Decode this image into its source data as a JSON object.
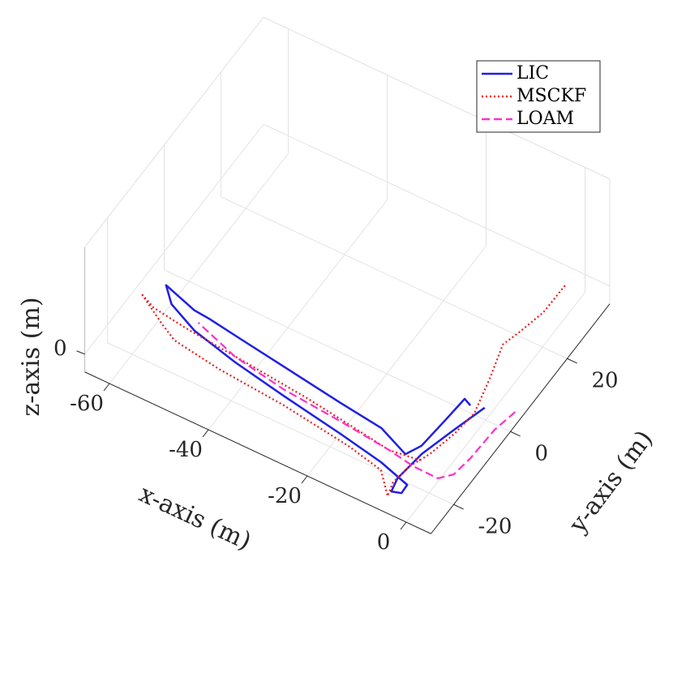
{
  "chart_data": {
    "type": "line3d",
    "xlabel": "x-axis (m)",
    "ylabel": "y-axis (m)",
    "zlabel": "z-axis (m)",
    "xlim": [
      -65,
      5
    ],
    "ylim": [
      -28,
      35
    ],
    "zlim": [
      -10,
      60
    ],
    "xticks": [
      -60,
      -40,
      -20,
      0
    ],
    "yticks": [
      -20,
      0,
      20
    ],
    "zticks": [
      0
    ],
    "grid": true,
    "legend": "upper right",
    "series": [
      {
        "name": "LIC",
        "color": "#1f1fe6",
        "style": "solid",
        "x": [
          0.5,
          -1.5,
          -3.5,
          -4.3,
          -3.7,
          -2.0,
          -2.1,
          -8.6,
          -17.9,
          -30.7,
          -41.8,
          -51.4,
          -57.9,
          -60.9,
          -53.8,
          -50.6,
          -43.1,
          -34.1,
          -21.4,
          -12.5,
          -5.9,
          -4.5,
          -3.9,
          -3.5,
          -1.9
        ],
        "y": [
          -1.2,
          -8.5,
          -16.4,
          -23.6,
          -26.8,
          -26.2,
          -24.0,
          -21.9,
          -20.0,
          -17.7,
          -15.5,
          -13.0,
          -9.8,
          -6.5,
          -8.9,
          -9.2,
          -10.4,
          -11.8,
          -13.8,
          -15.0,
          -18.0,
          -14.8,
          -7.2,
          -1.3,
          -2.1
        ],
        "z": [
          0,
          0,
          0,
          0,
          0,
          0,
          0,
          0,
          0,
          0,
          0,
          0,
          0,
          0,
          0,
          0,
          0,
          0,
          0,
          0,
          0,
          0,
          0,
          0,
          0
        ]
      },
      {
        "name": "MSCKF",
        "color": "#ee1c1c",
        "style": "dotted",
        "x": [
          -1.7,
          -1.8,
          -3.1,
          -4.1,
          -2.2,
          -0.4,
          -1.0,
          -2.3,
          -3.9,
          -4.5,
          -3.7,
          -7.7,
          -15.3,
          -29.6,
          -43.4,
          -53.3,
          -57.0,
          -63.6,
          -60.1,
          -52.9,
          -40.7,
          -26.7,
          -15.9,
          -8.8,
          -2.8
        ],
        "y": [
          30.9,
          23.5,
          17.2,
          13.2,
          5.5,
          -3.3,
          -9.3,
          -15.7,
          -20.0,
          -24.8,
          -28.1,
          -23.5,
          -21.7,
          -19.6,
          -18.4,
          -16.8,
          -14.7,
          -10.5,
          -12.2,
          -13.3,
          -14.5,
          -16.0,
          -17.6,
          -18.7,
          -17.8
        ],
        "z": [
          0,
          0,
          0,
          0,
          0,
          0,
          0,
          0,
          0,
          0,
          0,
          0,
          0,
          0,
          0,
          0,
          0,
          0,
          0,
          0,
          0,
          0,
          0,
          0,
          0
        ]
      },
      {
        "name": "LOAM",
        "color": "#ff30c8",
        "style": "dashed",
        "x": [
          5.5,
          4.5,
          4.2,
          3.6,
          1.7,
          -3.3,
          -8.8,
          -19.3,
          -31.5,
          -42.4,
          -51.8
        ],
        "y": [
          0.8,
          -4.7,
          -12.7,
          -17.5,
          -19.8,
          -19.7,
          -18.7,
          -17.5,
          -16.4,
          -14.4,
          -11.0
        ],
        "z": [
          0,
          0,
          0,
          0,
          0,
          0,
          0,
          0,
          0,
          0,
          0
        ]
      }
    ]
  }
}
